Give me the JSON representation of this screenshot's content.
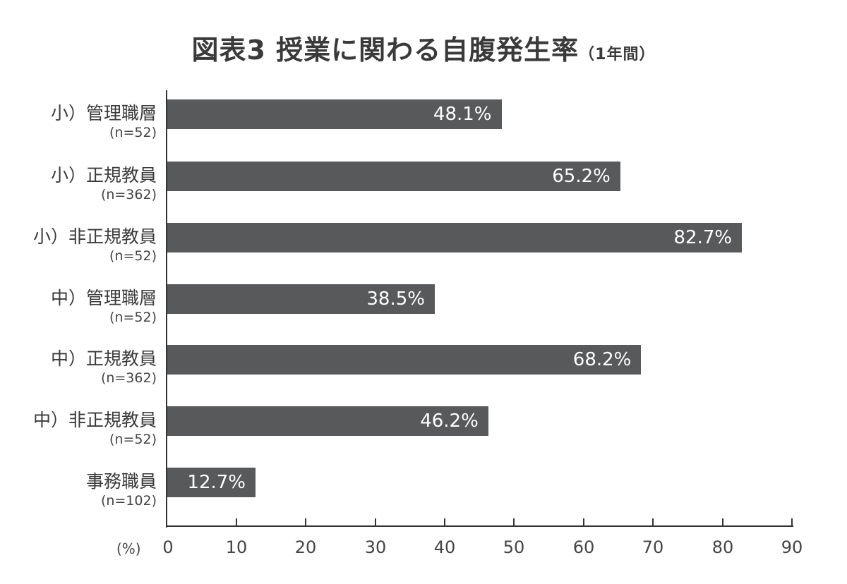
{
  "title": {
    "main": "図表3 授業に関わる自腹発生率",
    "sub": "（1年間）"
  },
  "chart_data": {
    "type": "bar",
    "orientation": "horizontal",
    "title": "図表3 授業に関わる自腹発生率（1年間）",
    "xlabel": "(%)",
    "ylabel": "",
    "xlim": [
      0,
      90
    ],
    "xticks": [
      0,
      10,
      20,
      30,
      40,
      50,
      60,
      70,
      80,
      90
    ],
    "grid": false,
    "legend": null,
    "bar_color": "#58595b",
    "categories": [
      "小）管理職層 (n=52)",
      "小）正規教員 (n=362)",
      "小）非正規教員 (n=52)",
      "中）管理職層 (n=52)",
      "中）正規教員 (n=362)",
      "中）非正規教員 (n=52)",
      "事務職員 (n=102)"
    ],
    "values": [
      48.1,
      65.2,
      82.7,
      38.5,
      68.2,
      46.2,
      12.7
    ],
    "bars": [
      {
        "name": "小）管理職層",
        "n": "(n=52)",
        "value": 48.1,
        "label": "48.1%"
      },
      {
        "name": "小）正規教員",
        "n": "(n=362)",
        "value": 65.2,
        "label": "65.2%"
      },
      {
        "name": "小）非正規教員",
        "n": "(n=52)",
        "value": 82.7,
        "label": "82.7%"
      },
      {
        "name": "中）管理職層",
        "n": "(n=52)",
        "value": 38.5,
        "label": "38.5%"
      },
      {
        "name": "中）正規教員",
        "n": "(n=362)",
        "value": 68.2,
        "label": "68.2%"
      },
      {
        "name": "中）非正規教員",
        "n": "(n=52)",
        "value": 46.2,
        "label": "46.2%"
      },
      {
        "name": "事務職員",
        "n": "(n=102)",
        "value": 12.7,
        "label": "12.7%"
      }
    ]
  },
  "axis": {
    "unit_label": "(%)",
    "ticks": [
      "0",
      "10",
      "20",
      "30",
      "40",
      "50",
      "60",
      "70",
      "80",
      "90"
    ]
  }
}
